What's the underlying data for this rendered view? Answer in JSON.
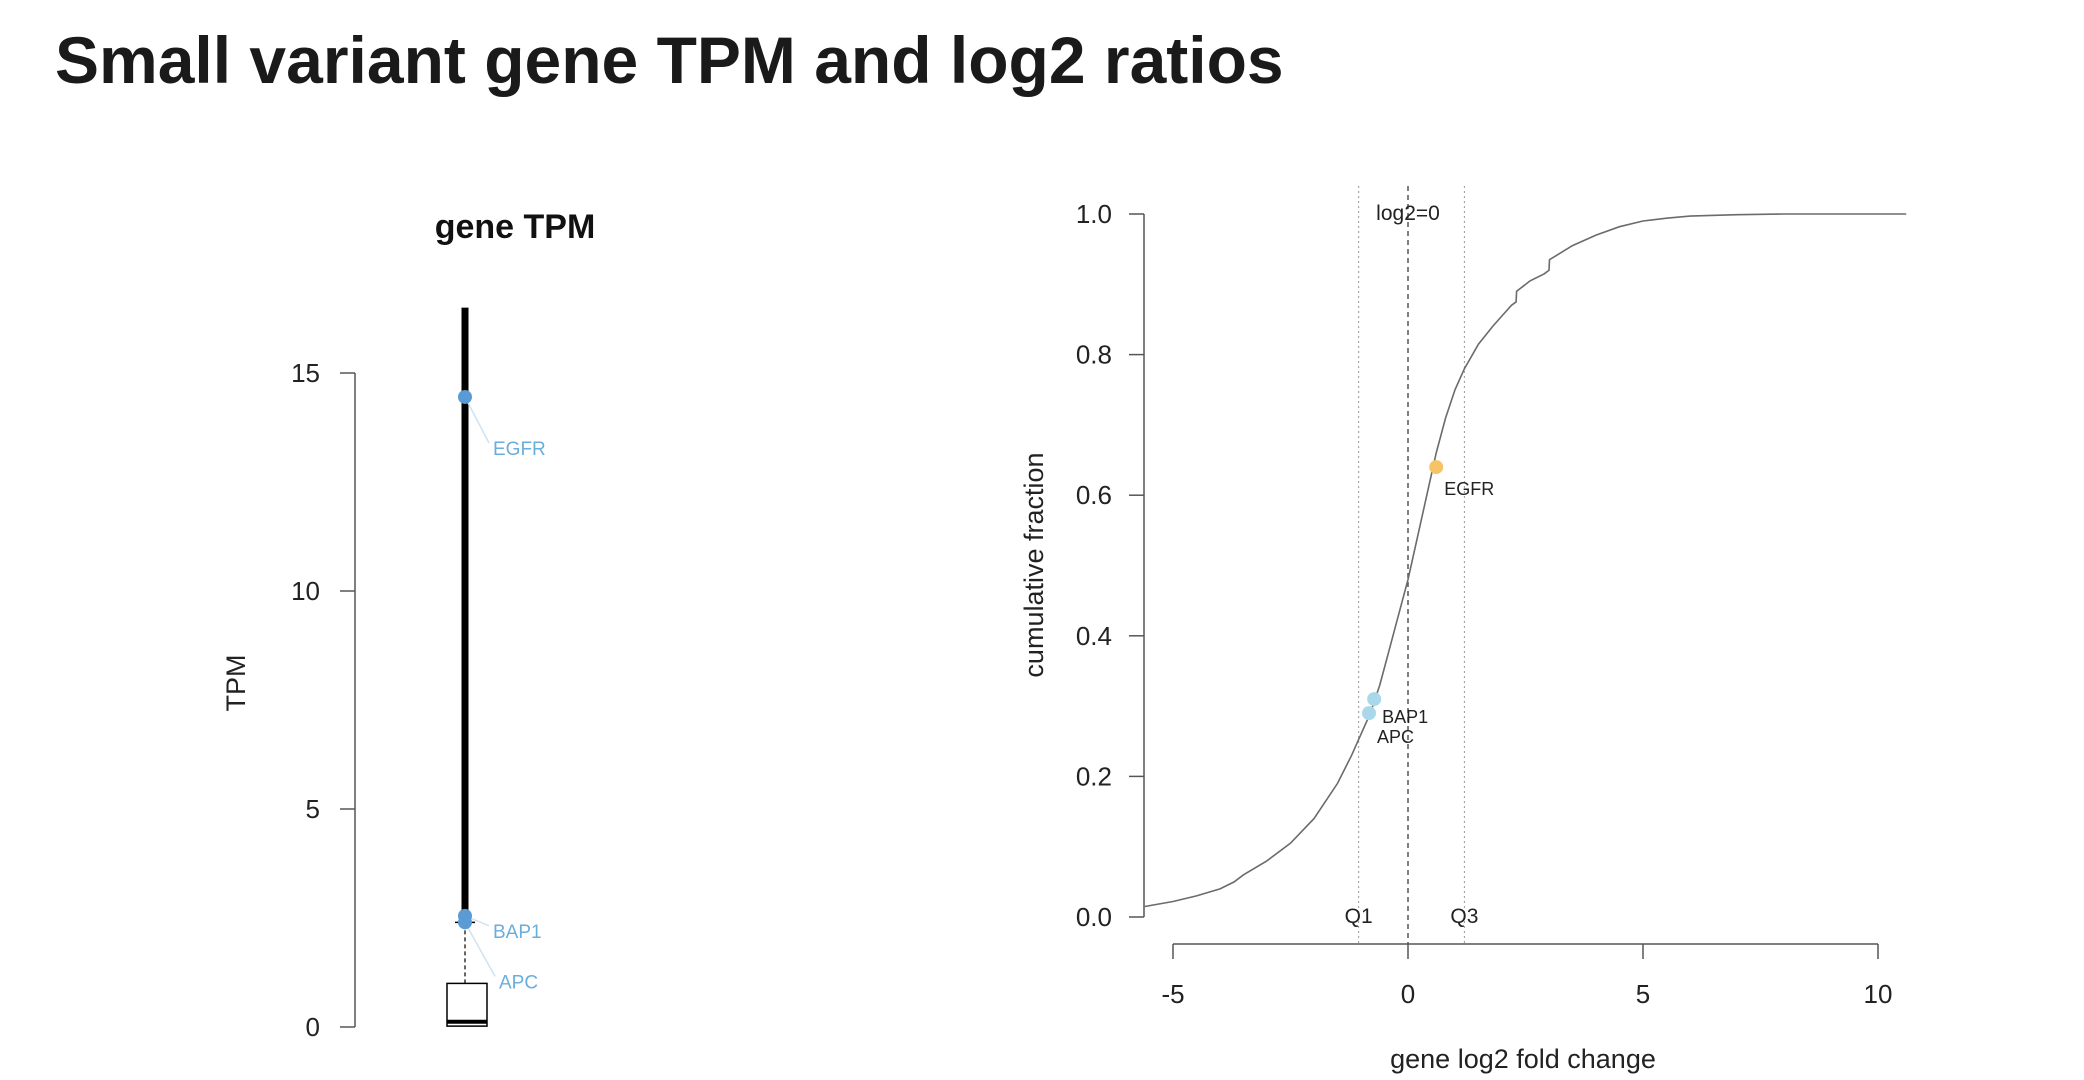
{
  "page": {
    "title": "Small variant gene TPM and log2 ratios"
  },
  "chart_data": [
    {
      "type": "boxplot",
      "title": "gene TPM",
      "xlabel": "",
      "ylabel": "TPM",
      "ylim": [
        0,
        15.5
      ],
      "yticks": [
        0,
        5,
        10,
        15
      ],
      "box": {
        "min": 0,
        "q1": 0.02,
        "median": 0.12,
        "q3": 1.0,
        "whisker_high": 2.4,
        "outlier_max": 16.5
      },
      "points": [
        {
          "label": "EGFR",
          "value": 14.45
        },
        {
          "label": "BAP1",
          "value": 2.55
        },
        {
          "label": "APC",
          "value": 2.4
        }
      ],
      "colors": {
        "points": "#5b9bd5",
        "labels": "#6aaedb",
        "box": "#000000"
      }
    },
    {
      "type": "line",
      "title": "",
      "xlabel": "gene log2 fold change",
      "ylabel": "cumulative fraction",
      "xlim": [
        -5,
        10
      ],
      "ylim": [
        0,
        1
      ],
      "xticks": [
        -5,
        0,
        5,
        10
      ],
      "yticks": [
        "0.0",
        "0.2",
        "0.4",
        "0.6",
        "0.8",
        "1.0"
      ],
      "series": [
        {
          "x": [
            -5.6,
            -5.0,
            -4.5,
            -4.0,
            -3.7,
            -3.5,
            -3.0,
            -2.5,
            -2.0,
            -1.5,
            -1.2,
            -1.0,
            -0.8,
            -0.6,
            -0.4,
            -0.2,
            0.0,
            0.2,
            0.4,
            0.6,
            0.8,
            1.0,
            1.2,
            1.5,
            1.8,
            2.0,
            2.2,
            2.3,
            2.31,
            2.6,
            2.9,
            3.0,
            3.01,
            3.5,
            4.0,
            4.5,
            5.0,
            5.5,
            6.0,
            7.0,
            8.0,
            9.0,
            10.6
          ],
          "y": [
            0.015,
            0.022,
            0.03,
            0.04,
            0.05,
            0.06,
            0.08,
            0.105,
            0.14,
            0.19,
            0.23,
            0.26,
            0.29,
            0.33,
            0.38,
            0.43,
            0.48,
            0.54,
            0.6,
            0.66,
            0.71,
            0.75,
            0.78,
            0.815,
            0.84,
            0.855,
            0.87,
            0.875,
            0.89,
            0.905,
            0.915,
            0.92,
            0.935,
            0.955,
            0.97,
            0.982,
            0.99,
            0.994,
            0.997,
            0.999,
            1.0,
            1.0,
            1.0
          ]
        }
      ],
      "points": [
        {
          "label": "EGFR",
          "x": 0.6,
          "y": 0.64,
          "color": "#f6c467"
        },
        {
          "label": "BAP1",
          "x": -0.72,
          "y": 0.31,
          "color": "#a9d8ea"
        },
        {
          "label": "APC",
          "x": -0.83,
          "y": 0.29,
          "color": "#a9d8ea"
        }
      ],
      "vlines": [
        {
          "label": "log2=0",
          "x": 0,
          "style": "dashed"
        },
        {
          "label": "Q1",
          "x": -1.05,
          "style": "dotted"
        },
        {
          "label": "Q3",
          "x": 1.2,
          "style": "dotted"
        }
      ],
      "colors": {
        "curve": "#6b6b6b",
        "label_text": "#222222"
      }
    }
  ]
}
